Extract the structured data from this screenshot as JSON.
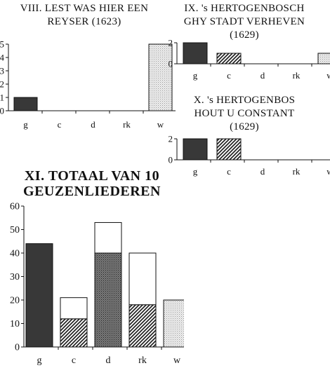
{
  "chart_data": [
    {
      "type": "bar",
      "title_lines": [
        "VIII. LEST WAS HIER EEN",
        "REYSER (1623)"
      ],
      "categories": [
        "g",
        "c",
        "d",
        "rk",
        "w"
      ],
      "values": [
        1,
        0,
        0,
        0,
        5
      ],
      "ylim": [
        0,
        5
      ],
      "yticks": [
        0,
        1,
        2,
        3,
        4,
        5
      ],
      "patterns": [
        "solid",
        "hatch",
        "cross",
        "white",
        "dots"
      ],
      "grid": false
    },
    {
      "type": "bar",
      "title_lines": [
        "IX. 's HERTOGENBOSCH",
        "GHY STADT VERHEVEN",
        "(1629)"
      ],
      "categories": [
        "g",
        "c",
        "d",
        "rk",
        "w"
      ],
      "values": [
        2,
        1,
        0,
        0,
        1
      ],
      "ylim": [
        0,
        2
      ],
      "yticks": [
        0,
        2
      ],
      "patterns": [
        "solid",
        "hatch",
        "cross",
        "white",
        "dots"
      ],
      "grid": false
    },
    {
      "type": "bar",
      "title_lines": [
        "X. 's HERTOGENBOS",
        "HOUT U CONSTANT",
        "(1629)"
      ],
      "categories": [
        "g",
        "c",
        "d",
        "rk",
        "w"
      ],
      "values": [
        2,
        2,
        0,
        0,
        0
      ],
      "ylim": [
        0,
        2
      ],
      "yticks": [
        0,
        2
      ],
      "patterns": [
        "solid",
        "hatch",
        "cross",
        "white",
        "dots"
      ],
      "grid": false
    },
    {
      "type": "bar",
      "stacked": true,
      "title_lines": [
        "XI. TOTAAL VAN 10",
        "GEUZENLIEDEREN"
      ],
      "categories": [
        "g",
        "c",
        "d",
        "rk",
        "w"
      ],
      "series": [
        {
          "values": [
            44,
            12,
            40,
            18,
            20
          ],
          "patterns": [
            "solid",
            "hatch",
            "cross",
            "hatch",
            "dots"
          ]
        },
        {
          "values": [
            0,
            9,
            13,
            22,
            0
          ],
          "patterns": [
            "white",
            "white",
            "white",
            "white",
            "white"
          ]
        }
      ],
      "ylim": [
        0,
        60
      ],
      "yticks": [
        0,
        10,
        20,
        30,
        40,
        50,
        60
      ],
      "grid": false
    }
  ]
}
